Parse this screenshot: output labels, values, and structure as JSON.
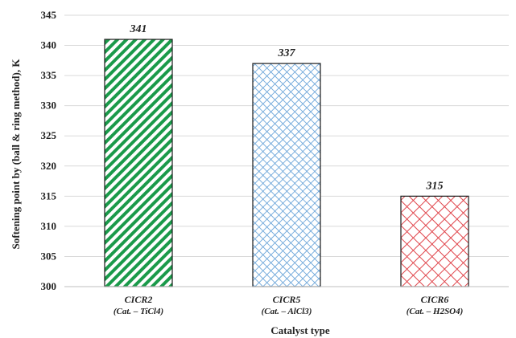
{
  "chart_data": {
    "type": "bar",
    "categories": [
      "CICR2",
      "CICR5",
      "CICR6"
    ],
    "category_sublabels": [
      "(Cat. – TiCl4)",
      "(Cat. – AlCl3)",
      "(Cat. – H2SO4)"
    ],
    "values": [
      341,
      337,
      315
    ],
    "data_labels": [
      "341",
      "337",
      "315"
    ],
    "xlabel": "Catalyst type",
    "ylabel": "Softening point by (ball & ring method), K",
    "ylim": [
      300,
      345
    ],
    "yticks": [
      "300",
      "305",
      "310",
      "315",
      "320",
      "325",
      "330",
      "335",
      "340",
      "345"
    ],
    "grid": true,
    "bar_colors": [
      "#1a9a4a",
      "#5b9bd5",
      "#e0444a"
    ],
    "bar_patterns": [
      "diagonal-stripes",
      "crosshatch",
      "lattice"
    ]
  }
}
